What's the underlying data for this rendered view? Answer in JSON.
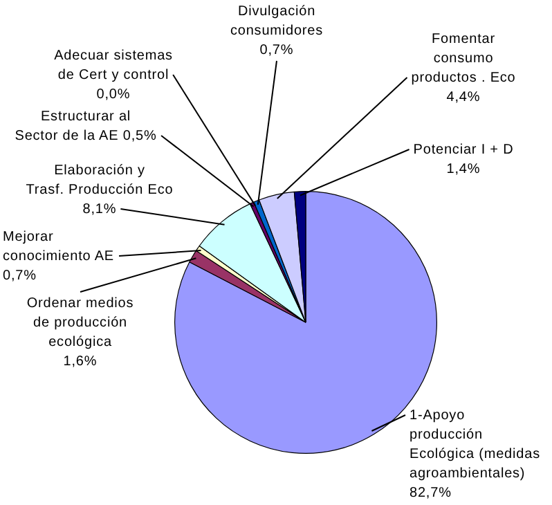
{
  "chart_data": {
    "type": "pie",
    "categories": [
      "1-Apoyo producción Ecológica (medidas agroambientales)",
      "Ordenar medios de producción ecológica",
      "Mejorar conocimiento AE",
      "Elaboración y Trasf. Producción Eco",
      "Estructurar al Sector de la AE",
      "Adecuar sistemas de Cert y control",
      "Divulgación consumidores",
      "Fomentar consumo productos . Eco",
      "Potenciar I + D"
    ],
    "values": [
      82.7,
      1.6,
      0.7,
      8.1,
      0.5,
      0.0,
      0.7,
      4.4,
      1.4
    ],
    "value_labels": [
      "82,7%",
      "1,6%",
      "0,7%",
      "8,1%",
      "0,5%",
      "0,0%",
      "0,7%",
      "4,4%",
      "1,4%"
    ],
    "colors": [
      "#9999ff",
      "#993366",
      "#ffffcc",
      "#ccffff",
      "#660066",
      "#ff8080",
      "#0066cc",
      "#ccccff",
      "#000080"
    ],
    "legend": false
  }
}
